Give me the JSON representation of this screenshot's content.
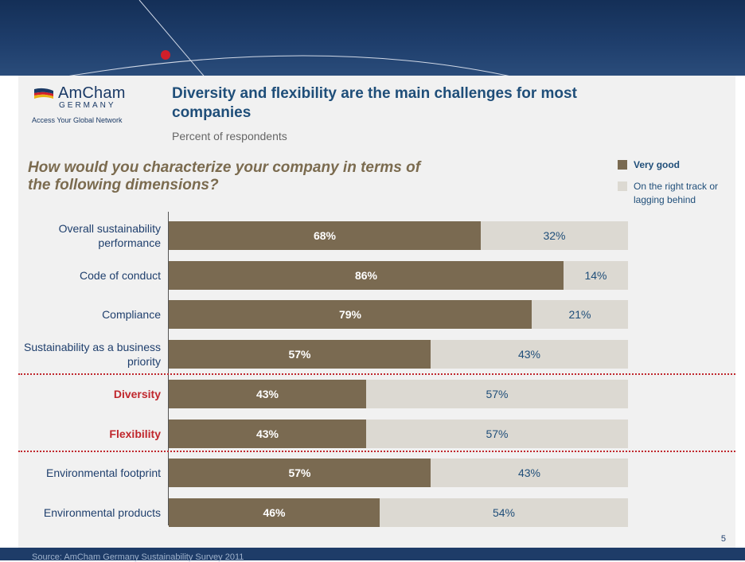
{
  "header": {
    "title": "Diversity and flexibility are the main challenges for most companies",
    "subtitle": "Percent of respondents"
  },
  "logo": {
    "name": "AmCham",
    "sub": "GERMANY",
    "tagline": "Access Your Global Network"
  },
  "question": "How would you characterize your company in terms of the following dimensions?",
  "page_number": "5",
  "footer": {
    "source": "Source: AmCham Germany Sustainability Survey 2011"
  },
  "colors": {
    "very_good": "#7a6a51",
    "other": "#dcd9d2",
    "highlight": "#c0272d",
    "navy": "#1f4e79"
  },
  "chart_data": {
    "type": "bar",
    "orientation": "horizontal",
    "stacked": true,
    "unit": "%",
    "legend_position": "top-right",
    "categories": [
      "Overall sustainability performance",
      "Code of conduct",
      "Compliance",
      "Sustainability as a business priority",
      "Diversity",
      "Flexibility",
      "Environmental footprint",
      "Environmental products"
    ],
    "highlighted_categories": [
      "Diversity",
      "Flexibility"
    ],
    "series": [
      {
        "name": "Very good",
        "values": [
          68,
          86,
          79,
          57,
          43,
          43,
          57,
          46
        ],
        "labels": [
          "68%",
          "86%",
          "79%",
          "57%",
          "43%",
          "43%",
          "57%",
          "46%"
        ]
      },
      {
        "name": "On the right track or lagging behind",
        "values": [
          32,
          14,
          21,
          43,
          57,
          57,
          43,
          54
        ],
        "labels": [
          "32%",
          "14%",
          "21%",
          "43%",
          "57%",
          "57%",
          "43%",
          "54%"
        ]
      }
    ],
    "xlim": [
      0,
      100
    ]
  }
}
